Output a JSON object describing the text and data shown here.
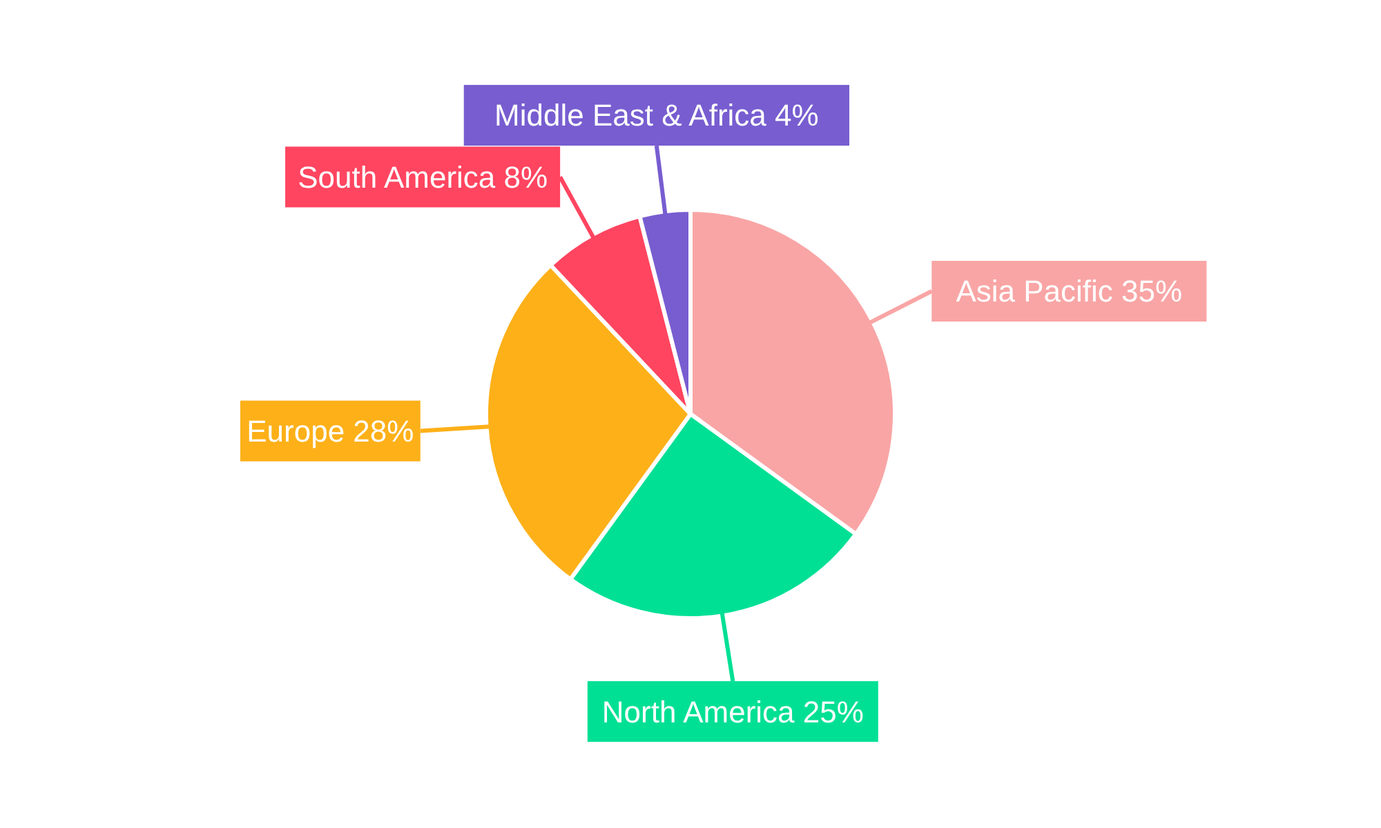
{
  "chart_data": {
    "type": "pie",
    "categories": [
      "Asia Pacific",
      "North America",
      "Europe",
      "South America",
      "Middle East & Africa"
    ],
    "values": [
      35,
      25,
      28,
      8,
      4
    ],
    "colors": [
      "#f9a5a5",
      "#00e094",
      "#fdb018",
      "#ff4560",
      "#775dd0"
    ],
    "value_labels": [
      "35%",
      "25%",
      "28%",
      "8%",
      "4%"
    ],
    "legend": false
  }
}
